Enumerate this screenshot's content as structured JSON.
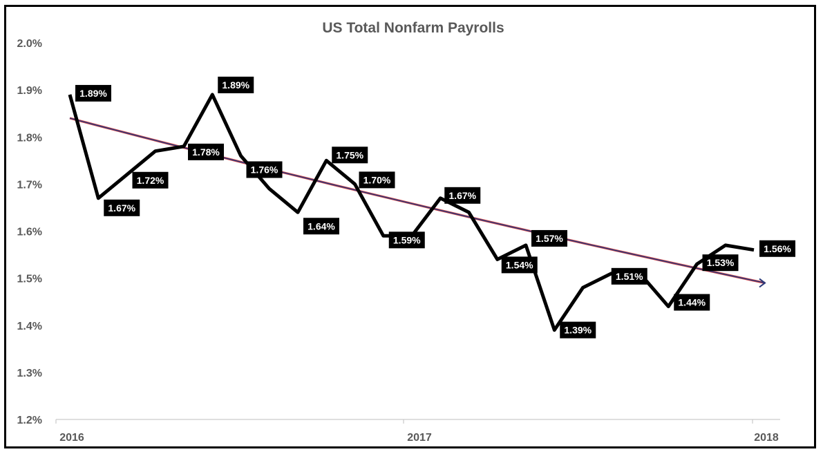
{
  "chart_data": {
    "type": "line",
    "title": "US Total Nonfarm Payrolls",
    "xlabel": "",
    "ylabel": "",
    "ylim": [
      1.2,
      2.0
    ],
    "y_ticks": [
      "1.2%",
      "1.3%",
      "1.4%",
      "1.5%",
      "1.6%",
      "1.7%",
      "1.8%",
      "1.9%",
      "2.0%"
    ],
    "x_ticks": [
      "2016",
      "2017",
      "2018"
    ],
    "grid": false,
    "series": [
      {
        "color": "#000000",
        "values": [
          1.89,
          1.67,
          1.72,
          1.77,
          1.78,
          1.89,
          1.76,
          1.69,
          1.64,
          1.75,
          1.7,
          1.59,
          1.59,
          1.67,
          1.64,
          1.54,
          1.57,
          1.39,
          1.48,
          1.51,
          1.51,
          1.44,
          1.53,
          1.57,
          1.56
        ],
        "labels": [
          "1.89%",
          "1.67%",
          "1.72%",
          "",
          "1.78%",
          "1.89%",
          "1.76%",
          "",
          "1.64%",
          "1.75%",
          "1.70%",
          "1.59%",
          "",
          "1.67%",
          "",
          "1.54%",
          "1.57%",
          "1.39%",
          "",
          "1.51%",
          "",
          "1.44%",
          "1.53%",
          "",
          "1.56%"
        ]
      }
    ],
    "trendline": {
      "type": "exponential",
      "start_value": 1.84,
      "end_value": 1.49,
      "color": "#2b3a7a",
      "accent": "#d94040"
    }
  }
}
